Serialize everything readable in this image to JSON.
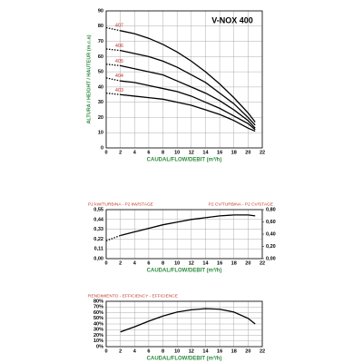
{
  "chart_data": [
    {
      "type": "line",
      "title": "V-NOX 400",
      "ylabel": "ALTURA / HEIGHT / HAUTEUR (m.c.a)",
      "xlabel": "CAUDAL/FLOW/DEBIT (m³/h)",
      "x": [
        0,
        2,
        4,
        6,
        8,
        10,
        12,
        14,
        16,
        18,
        20,
        21
      ],
      "xlim": [
        0,
        22
      ],
      "xticks": [
        0,
        2,
        4,
        6,
        8,
        10,
        12,
        14,
        16,
        18,
        20,
        22
      ],
      "ylim": [
        0,
        90
      ],
      "yticks": [
        0,
        10,
        20,
        30,
        40,
        50,
        60,
        70,
        80,
        90
      ],
      "grid": true,
      "series": [
        {
          "name": "407",
          "color": "#000000",
          "values": [
            79,
            77,
            75,
            72,
            68,
            63,
            57,
            50,
            42,
            33,
            23,
            17
          ]
        },
        {
          "name": "406",
          "color": "#000000",
          "values": [
            65,
            64,
            62,
            60,
            57,
            53,
            48,
            43,
            36,
            29,
            20,
            15
          ]
        },
        {
          "name": "405",
          "color": "#000000",
          "values": [
            55,
            54,
            52,
            50,
            48,
            44,
            40,
            36,
            31,
            25,
            18,
            13
          ]
        },
        {
          "name": "404",
          "color": "#000000",
          "values": [
            46,
            44,
            43,
            41,
            39,
            37,
            34,
            30,
            26,
            21,
            16,
            12
          ]
        },
        {
          "name": "403",
          "color": "#000000",
          "values": [
            36,
            35,
            34,
            33,
            32,
            30,
            28,
            25,
            22,
            18,
            13,
            11
          ]
        }
      ]
    },
    {
      "type": "line",
      "ylabel": "P2 kW/TURBINA - P2 kW/STAGE",
      "y2label": "P2 CV/TURBINA - P2 CV/STAGE",
      "xlabel": "CAUDAL/FLOW/DEBIT (m³/h)",
      "x": [
        0,
        2,
        4,
        6,
        8,
        10,
        12,
        14,
        16,
        18,
        20,
        21
      ],
      "xlim": [
        0,
        22
      ],
      "xticks": [
        0,
        2,
        4,
        6,
        8,
        10,
        12,
        14,
        16,
        18,
        20,
        22
      ],
      "ylim": [
        0,
        0.55
      ],
      "yticks": [
        {
          "value": 0,
          "label": "0,00"
        },
        {
          "value": 0.11,
          "label": "0,11"
        },
        {
          "value": 0.22,
          "label": "0,22"
        },
        {
          "value": 0.33,
          "label": "0,33"
        },
        {
          "value": 0.44,
          "label": "0,44"
        },
        {
          "value": 0.55,
          "label": "0,55"
        }
      ],
      "y2lim": [
        0,
        0.8
      ],
      "y2ticks": [
        {
          "value": 0,
          "label": "0,00"
        },
        {
          "value": 0.2,
          "label": "0,20"
        },
        {
          "value": 0.4,
          "label": "0,40"
        },
        {
          "value": 0.6,
          "label": "0,60"
        },
        {
          "value": 0.8,
          "label": "0,80"
        }
      ],
      "grid": true,
      "series": [
        {
          "color": "#000000",
          "values": [
            0.2,
            0.26,
            0.3,
            0.34,
            0.38,
            0.41,
            0.44,
            0.46,
            0.48,
            0.49,
            0.49,
            0.48
          ]
        }
      ]
    },
    {
      "type": "line",
      "ylabel": "RENDIMIENTO - EFFICIENCY - EFFICIENCE",
      "xlabel": "CAUDAL/FLOW/DEBIT (m³/h)",
      "x": [
        2,
        4,
        6,
        8,
        10,
        12,
        14,
        16,
        18,
        20,
        21
      ],
      "xlim": [
        0,
        22
      ],
      "xticks": [
        0,
        2,
        4,
        6,
        8,
        10,
        12,
        14,
        16,
        18,
        20,
        22
      ],
      "ylim": [
        0,
        80
      ],
      "yticks": [
        {
          "value": 0,
          "label": "0%"
        },
        {
          "value": 10,
          "label": "10%"
        },
        {
          "value": 20,
          "label": "20%"
        },
        {
          "value": 30,
          "label": "30%"
        },
        {
          "value": 40,
          "label": "40%"
        },
        {
          "value": 50,
          "label": "50%"
        },
        {
          "value": 60,
          "label": "60%"
        },
        {
          "value": 70,
          "label": "70%"
        },
        {
          "value": 80,
          "label": "80%"
        }
      ],
      "grid": true,
      "series": [
        {
          "color": "#000000",
          "values": [
            26,
            35,
            45,
            54,
            61,
            65,
            67,
            66,
            61,
            50,
            40
          ]
        }
      ]
    }
  ]
}
